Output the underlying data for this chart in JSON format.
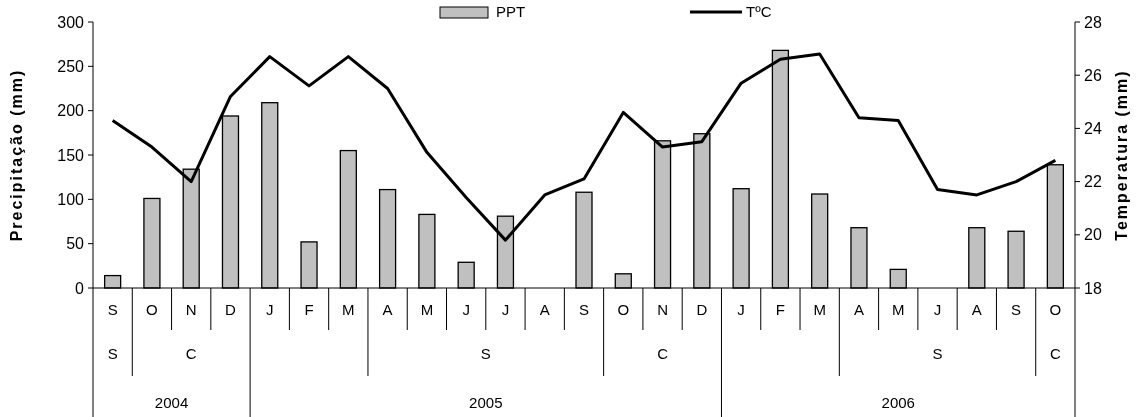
{
  "chart_data": {
    "type": "bar",
    "xlabel": null,
    "ylabel": "Precipitação (mm)",
    "y2label": "Temperatura (mm)",
    "categories": [
      "S",
      "O",
      "N",
      "D",
      "J",
      "F",
      "M",
      "A",
      "M",
      "J",
      "J",
      "A",
      "S",
      "O",
      "N",
      "D",
      "J",
      "F",
      "M",
      "A",
      "M",
      "J",
      "A",
      "S",
      "O"
    ],
    "series": [
      {
        "name": "PPT",
        "color": "#c0c0c0",
        "values": [
          14,
          101,
          134,
          194,
          209,
          52,
          155,
          111,
          83,
          29,
          81,
          null,
          108,
          16,
          166,
          174,
          112,
          268,
          106,
          68,
          21,
          null,
          68,
          64,
          139
        ]
      },
      {
        "name": "TºC",
        "type": "line",
        "axis": "y2",
        "color": "#000000",
        "values": [
          24.3,
          23.3,
          22.0,
          25.2,
          26.7,
          25.6,
          26.7,
          25.5,
          23.1,
          21.4,
          19.8,
          21.5,
          22.1,
          24.6,
          23.3,
          23.5,
          25.7,
          26.6,
          26.8,
          24.4,
          24.3,
          21.7,
          21.5,
          22.0,
          22.8
        ]
      }
    ],
    "ylim": [
      0,
      300
    ],
    "yticks": [
      0,
      50,
      100,
      150,
      200,
      250,
      300
    ],
    "y2lim": [
      18,
      28
    ],
    "y2ticks": [
      18,
      20,
      22,
      24,
      26,
      28
    ],
    "legend": "top",
    "annotations": [
      "S",
      "C",
      "S",
      "C",
      "S",
      "C",
      "2004",
      "2005",
      "2006"
    ]
  }
}
